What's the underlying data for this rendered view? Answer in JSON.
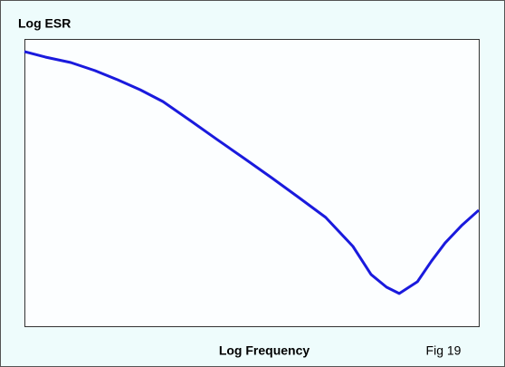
{
  "chart_data": {
    "type": "line",
    "title": "Log ESR",
    "x_label": "Log Frequency",
    "annotation": "Fig 19",
    "x": [
      0,
      4.6,
      10.2,
      15.5,
      20.5,
      25.5,
      30.5,
      36.5,
      42.4,
      48.4,
      54.4,
      60.4,
      66.3,
      72.3,
      76.3,
      79.7,
      82.5,
      86.5,
      89.6,
      92.6,
      96.2,
      100
    ],
    "series": [
      {
        "color": "#1a1add",
        "values": [
          95.6,
          93.7,
          91.8,
          89.0,
          85.8,
          82.3,
          78.2,
          71.6,
          65.0,
          58.4,
          51.7,
          44.8,
          37.9,
          27.8,
          18.0,
          13.6,
          11.4,
          15.5,
          22.7,
          29.0,
          35.0,
          40.4
        ]
      }
    ],
    "xlim": [
      0,
      100
    ],
    "ylim": [
      0,
      100
    ]
  }
}
